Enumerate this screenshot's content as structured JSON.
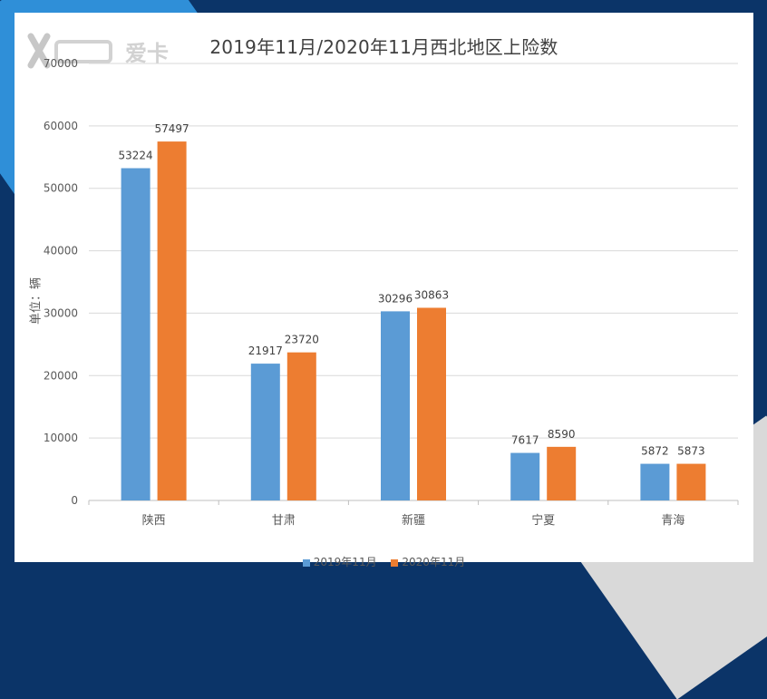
{
  "brand": {
    "logo_text": "爱卡"
  },
  "colors": {
    "series1": "#5b9bd5",
    "series2": "#ed7d31",
    "grid": "#d9d9d9",
    "axis_text": "#595959",
    "title": "#404040"
  },
  "chart_data": {
    "type": "bar",
    "title": "2019年11月/2020年11月西北地区上险数",
    "xlabel": "",
    "ylabel": "单位：辆",
    "ylim": [
      0,
      70000
    ],
    "yticks": [
      "0",
      "10000",
      "20000",
      "30000",
      "40000",
      "50000",
      "60000",
      "70000"
    ],
    "grid": true,
    "legend_position": "bottom",
    "categories": [
      "陕西",
      "甘肃",
      "新疆",
      "宁夏",
      "青海"
    ],
    "series": [
      {
        "name": "2019年11月",
        "values": [
          53224,
          21917,
          30296,
          7617,
          5872
        ]
      },
      {
        "name": "2020年11月",
        "values": [
          57497,
          23720,
          30863,
          8590,
          5873
        ]
      }
    ]
  }
}
